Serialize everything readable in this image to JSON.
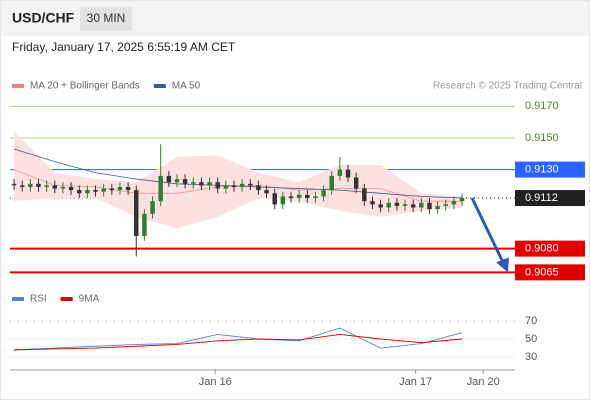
{
  "header": {
    "symbol": "USD/CHF",
    "timeframe": "30 MIN",
    "datetime": "Friday, January 17, 2025 6:55:19 AM CET",
    "credit": "Research © 2025 Trading Central"
  },
  "chart_data": [
    {
      "type": "candlestick",
      "xlim": [
        -0.5,
        61.5
      ],
      "ylim": [
        0.9057,
        0.9174
      ],
      "candles": [
        [
          0.9121,
          0.9124,
          0.9117,
          0.912
        ],
        [
          0.912,
          0.9123,
          0.9116,
          0.9119
        ],
        [
          0.9119,
          0.9124,
          0.9116,
          0.9121
        ],
        [
          0.9121,
          0.9124,
          0.9116,
          0.9119
        ],
        [
          0.9119,
          0.9123,
          0.9116,
          0.912
        ],
        [
          0.912,
          0.9123,
          0.9115,
          0.9118
        ],
        [
          0.9118,
          0.9122,
          0.9115,
          0.9119
        ],
        [
          0.9119,
          0.9122,
          0.9114,
          0.9117
        ],
        [
          0.9117,
          0.912,
          0.9112,
          0.9115
        ],
        [
          0.9115,
          0.912,
          0.9112,
          0.9117
        ],
        [
          0.9117,
          0.912,
          0.9113,
          0.9116
        ],
        [
          0.9116,
          0.9121,
          0.9113,
          0.9118
        ],
        [
          0.9118,
          0.9121,
          0.9114,
          0.9117
        ],
        [
          0.9117,
          0.9122,
          0.9114,
          0.9119
        ],
        [
          0.9119,
          0.9122,
          0.9114,
          0.9117
        ],
        [
          0.9117,
          0.912,
          0.9075,
          0.9088
        ],
        [
          0.9088,
          0.9105,
          0.9085,
          0.9102
        ],
        [
          0.9102,
          0.9113,
          0.9099,
          0.911
        ],
        [
          0.911,
          0.9146,
          0.9107,
          0.9126
        ],
        [
          0.9126,
          0.9129,
          0.9119,
          0.9122
        ],
        [
          0.9122,
          0.9127,
          0.9119,
          0.9124
        ],
        [
          0.9124,
          0.9127,
          0.9118,
          0.9121
        ],
        [
          0.9121,
          0.9125,
          0.9118,
          0.9122
        ],
        [
          0.9122,
          0.9125,
          0.9117,
          0.912
        ],
        [
          0.912,
          0.9125,
          0.9117,
          0.9122
        ],
        [
          0.9122,
          0.9125,
          0.9115,
          0.9118
        ],
        [
          0.9118,
          0.9123,
          0.9115,
          0.912
        ],
        [
          0.912,
          0.9123,
          0.9116,
          0.9119
        ],
        [
          0.9119,
          0.9124,
          0.9116,
          0.9121
        ],
        [
          0.9121,
          0.9124,
          0.9117,
          0.912
        ],
        [
          0.912,
          0.9123,
          0.9114,
          0.9117
        ],
        [
          0.9117,
          0.912,
          0.9112,
          0.9115
        ],
        [
          0.9115,
          0.9118,
          0.9105,
          0.9108
        ],
        [
          0.9108,
          0.9116,
          0.9105,
          0.9113
        ],
        [
          0.9113,
          0.9116,
          0.9109,
          0.9112
        ],
        [
          0.9112,
          0.9117,
          0.9109,
          0.9114
        ],
        [
          0.9114,
          0.9117,
          0.9109,
          0.9112
        ],
        [
          0.9112,
          0.9116,
          0.9109,
          0.9113
        ],
        [
          0.9113,
          0.912,
          0.911,
          0.9117
        ],
        [
          0.9117,
          0.9129,
          0.9114,
          0.9126
        ],
        [
          0.9126,
          0.9138,
          0.9123,
          0.913
        ],
        [
          0.913,
          0.9133,
          0.9122,
          0.9125
        ],
        [
          0.9125,
          0.9128,
          0.9115,
          0.9118
        ],
        [
          0.9118,
          0.9121,
          0.9107,
          0.911
        ],
        [
          0.911,
          0.9113,
          0.9105,
          0.9108
        ],
        [
          0.9108,
          0.9111,
          0.9103,
          0.9106
        ],
        [
          0.9106,
          0.9112,
          0.9103,
          0.9109
        ],
        [
          0.9109,
          0.9112,
          0.9104,
          0.9107
        ],
        [
          0.9107,
          0.9111,
          0.9104,
          0.9108
        ],
        [
          0.9108,
          0.9111,
          0.9103,
          0.9106
        ],
        [
          0.9106,
          0.9112,
          0.9103,
          0.9109
        ],
        [
          0.9109,
          0.9112,
          0.9102,
          0.9105
        ],
        [
          0.9105,
          0.911,
          0.9102,
          0.9107
        ],
        [
          0.9107,
          0.9111,
          0.9104,
          0.9108
        ],
        [
          0.9108,
          0.9113,
          0.9105,
          0.911
        ],
        [
          0.911,
          0.9115,
          0.9107,
          0.9112
        ]
      ],
      "up_color": "#2e7d32",
      "down_color": "#333333",
      "series": [
        {
          "name": "MA 20 + Bollinger Bands",
          "color": "#f08080",
          "band_color": "#fde0e0",
          "x": [
            0,
            5,
            10,
            15,
            20,
            25,
            30,
            35,
            40,
            45,
            50,
            55
          ],
          "values": [
            0.913,
            0.912,
            0.9119,
            0.9115,
            0.9115,
            0.9119,
            0.912,
            0.9117,
            0.9118,
            0.9118,
            0.911,
            0.911
          ],
          "upper": [
            0.9154,
            0.9128,
            0.9124,
            0.9122,
            0.9138,
            0.9139,
            0.9128,
            0.9122,
            0.9133,
            0.9133,
            0.9115,
            0.9113
          ],
          "lower": [
            0.911,
            0.9112,
            0.9112,
            0.91,
            0.9093,
            0.91,
            0.9112,
            0.911,
            0.9104,
            0.91,
            0.9104,
            0.9106
          ]
        },
        {
          "name": "MA 50",
          "color": "#3b5998",
          "x": [
            0,
            5,
            10,
            15,
            20,
            25,
            30,
            35,
            40,
            45,
            50,
            55
          ],
          "values": [
            0.9143,
            0.9135,
            0.9128,
            0.9124,
            0.9121,
            0.912,
            0.9119,
            0.9118,
            0.9117,
            0.9115,
            0.9113,
            0.9112
          ]
        }
      ],
      "levels": [
        {
          "value": 0.917,
          "label": "0.9170",
          "color": "#8bc34a",
          "boxed": false
        },
        {
          "value": 0.915,
          "label": "0.9150",
          "color": "#8bc34a",
          "boxed": false
        },
        {
          "value": 0.913,
          "label": "0.9130",
          "color": "#2962ff",
          "boxed": true
        },
        {
          "value": 0.9112,
          "label": "0.9112",
          "color": "#222222",
          "boxed": true,
          "dotted": true
        },
        {
          "value": 0.908,
          "label": "0.9080",
          "color": "#e00000",
          "boxed": true
        },
        {
          "value": 0.9065,
          "label": "0.9065",
          "color": "#e00000",
          "boxed": true
        }
      ]
    },
    {
      "type": "line",
      "xlim": [
        -0.5,
        61.5
      ],
      "ylim": [
        18,
        82
      ],
      "yticks": [
        70,
        50,
        30
      ],
      "xticks": [
        {
          "value": 24.7,
          "label": "Jan 16"
        },
        {
          "value": 49.3,
          "label": "Jan 17"
        },
        {
          "value": 57.6,
          "label": "Jan 20"
        }
      ],
      "series": [
        {
          "name": "RSI",
          "color": "#5b7fd6",
          "x": [
            0,
            5,
            10,
            15,
            20,
            25,
            30,
            35,
            40,
            45,
            50,
            55
          ],
          "values": [
            38,
            40,
            42,
            44,
            45,
            55,
            50,
            48,
            62,
            40,
            45,
            57
          ]
        },
        {
          "name": "9MA",
          "color": "#e00000",
          "x": [
            0,
            5,
            10,
            15,
            20,
            25,
            30,
            35,
            40,
            45,
            50,
            55
          ],
          "values": [
            38,
            39,
            40,
            42,
            44,
            48,
            50,
            49,
            55,
            50,
            46,
            50
          ]
        }
      ]
    }
  ]
}
